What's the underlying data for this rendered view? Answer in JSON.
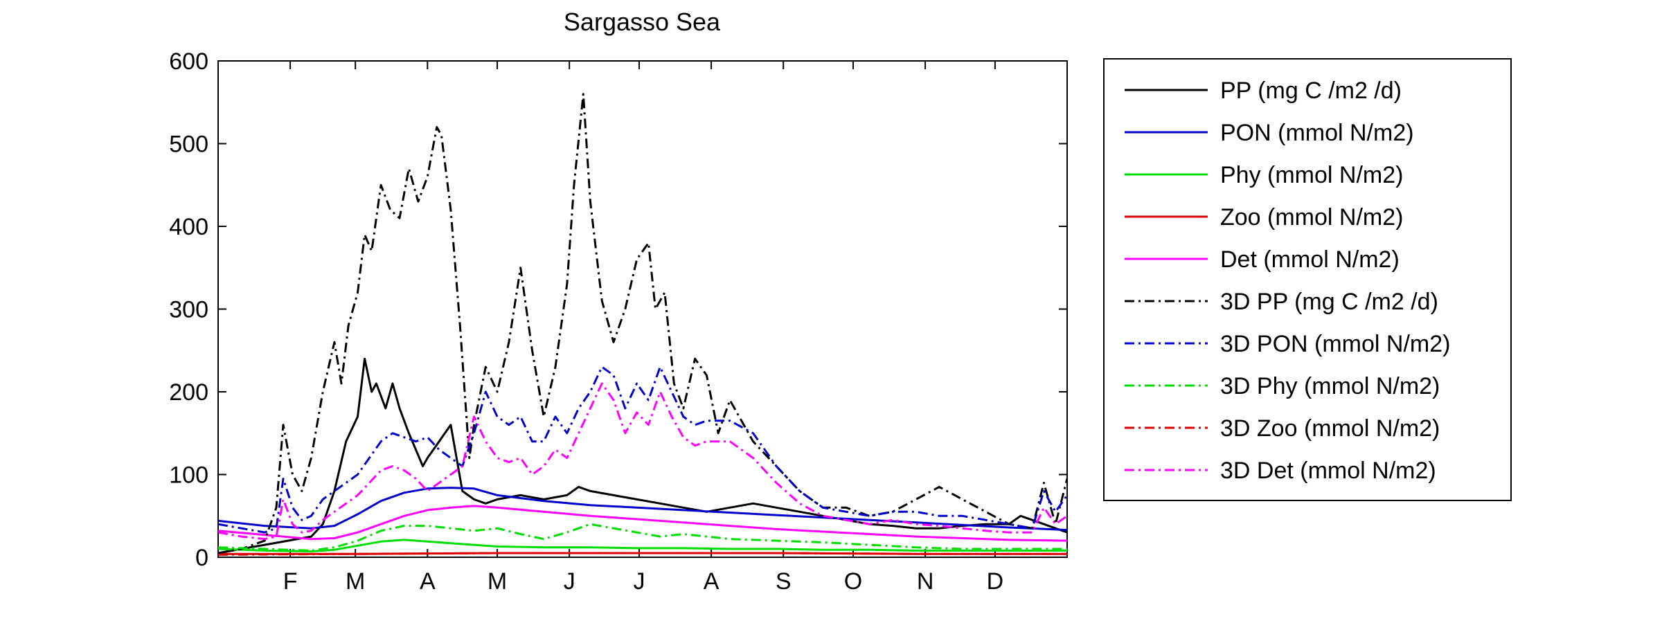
{
  "chart_data": {
    "type": "line",
    "title": "Sargasso Sea",
    "xlabel": "",
    "ylabel": "",
    "xlim": [
      0,
      365
    ],
    "ylim": [
      0,
      600
    ],
    "yticks": [
      0,
      100,
      200,
      300,
      400,
      500,
      600
    ],
    "xticks": [
      {
        "label": "F",
        "day": 31
      },
      {
        "label": "M",
        "day": 59
      },
      {
        "label": "A",
        "day": 90
      },
      {
        "label": "M",
        "day": 120
      },
      {
        "label": "J",
        "day": 151
      },
      {
        "label": "J",
        "day": 181
      },
      {
        "label": "A",
        "day": 212
      },
      {
        "label": "S",
        "day": 243
      },
      {
        "label": "O",
        "day": 273
      },
      {
        "label": "N",
        "day": 304
      },
      {
        "label": "D",
        "day": 334
      }
    ],
    "grid": false,
    "legend_position": "outside-right",
    "series": [
      {
        "name": "PP (mg C /m2 /d)",
        "color": "#000000",
        "dash": "solid",
        "x": [
          0,
          10,
          20,
          30,
          40,
          45,
          50,
          55,
          60,
          63,
          66,
          68,
          72,
          75,
          78,
          82,
          88,
          90,
          95,
          100,
          105,
          110,
          115,
          120,
          130,
          140,
          150,
          155,
          160,
          170,
          180,
          190,
          200,
          210,
          220,
          230,
          240,
          250,
          260,
          270,
          280,
          290,
          300,
          310,
          320,
          330,
          340,
          345,
          350,
          355,
          360,
          365
        ],
        "y": [
          5,
          10,
          15,
          20,
          25,
          40,
          80,
          140,
          170,
          240,
          200,
          210,
          180,
          210,
          180,
          150,
          110,
          120,
          140,
          160,
          80,
          70,
          65,
          70,
          75,
          70,
          75,
          85,
          80,
          75,
          70,
          65,
          60,
          55,
          60,
          65,
          60,
          55,
          50,
          45,
          40,
          38,
          35,
          35,
          38,
          40,
          40,
          50,
          45,
          40,
          35,
          30
        ]
      },
      {
        "name": "PON (mmol N/m2)",
        "color": "#0000cc",
        "dash": "solid",
        "x": [
          0,
          20,
          40,
          50,
          60,
          70,
          80,
          90,
          100,
          110,
          120,
          140,
          160,
          180,
          200,
          220,
          240,
          260,
          280,
          300,
          320,
          340,
          365
        ],
        "y": [
          44,
          38,
          35,
          38,
          52,
          68,
          78,
          83,
          84,
          83,
          75,
          68,
          63,
          60,
          57,
          54,
          51,
          48,
          45,
          42,
          39,
          36,
          33
        ]
      },
      {
        "name": "Phy (mmol N/m2)",
        "color": "#00dd00",
        "dash": "solid",
        "x": [
          0,
          20,
          40,
          50,
          60,
          70,
          80,
          90,
          100,
          110,
          120,
          140,
          160,
          180,
          200,
          220,
          240,
          260,
          280,
          300,
          320,
          340,
          365
        ],
        "y": [
          10,
          8,
          7,
          9,
          14,
          19,
          21,
          19,
          17,
          15,
          13,
          12,
          12,
          11,
          11,
          10,
          10,
          9,
          9,
          8,
          8,
          8,
          8
        ]
      },
      {
        "name": "Zoo (mmol N/m2)",
        "color": "#dd0000",
        "dash": "solid",
        "x": [
          0,
          60,
          120,
          180,
          240,
          300,
          365
        ],
        "y": [
          4,
          4,
          5,
          5,
          5,
          4,
          4
        ]
      },
      {
        "name": "Det (mmol N/m2)",
        "color": "#ff00ff",
        "dash": "solid",
        "x": [
          0,
          20,
          40,
          50,
          60,
          70,
          80,
          90,
          100,
          110,
          120,
          140,
          160,
          180,
          200,
          220,
          240,
          260,
          280,
          300,
          320,
          340,
          365
        ],
        "y": [
          32,
          27,
          22,
          23,
          30,
          40,
          50,
          57,
          60,
          62,
          60,
          55,
          50,
          46,
          42,
          38,
          34,
          31,
          28,
          25,
          23,
          21,
          20
        ]
      },
      {
        "name": "3D PP (mg C /m2 /d)",
        "color": "#000000",
        "dash": "dashdot",
        "x": [
          0,
          10,
          20,
          25,
          28,
          32,
          36,
          40,
          45,
          50,
          53,
          56,
          60,
          63,
          66,
          70,
          74,
          78,
          82,
          86,
          90,
          94,
          96,
          100,
          104,
          108,
          110,
          115,
          120,
          125,
          130,
          135,
          140,
          145,
          150,
          153,
          157,
          160,
          165,
          170,
          175,
          180,
          185,
          188,
          192,
          196,
          200,
          205,
          210,
          215,
          220,
          230,
          240,
          250,
          260,
          270,
          280,
          290,
          300,
          310,
          320,
          330,
          340,
          350,
          355,
          360,
          365
        ],
        "y": [
          5,
          10,
          20,
          60,
          160,
          100,
          80,
          120,
          200,
          260,
          210,
          280,
          320,
          390,
          370,
          450,
          420,
          410,
          470,
          430,
          460,
          520,
          510,
          420,
          280,
          120,
          160,
          230,
          200,
          260,
          350,
          250,
          170,
          230,
          330,
          450,
          560,
          430,
          310,
          260,
          300,
          360,
          380,
          300,
          320,
          210,
          180,
          240,
          220,
          150,
          190,
          140,
          110,
          80,
          60,
          60,
          50,
          55,
          70,
          85,
          70,
          55,
          40,
          35,
          90,
          40,
          95
        ]
      },
      {
        "name": "3D PON (mmol N/m2)",
        "color": "#0000cc",
        "dash": "dashdot",
        "x": [
          0,
          10,
          20,
          25,
          28,
          32,
          36,
          40,
          45,
          50,
          55,
          60,
          65,
          70,
          75,
          80,
          85,
          90,
          95,
          100,
          105,
          110,
          115,
          120,
          125,
          130,
          135,
          140,
          145,
          150,
          155,
          160,
          165,
          170,
          175,
          180,
          185,
          190,
          195,
          200,
          205,
          210,
          215,
          220,
          230,
          240,
          250,
          260,
          270,
          280,
          290,
          300,
          310,
          320,
          330,
          340,
          350,
          355,
          360,
          365
        ],
        "y": [
          40,
          35,
          30,
          35,
          95,
          60,
          45,
          50,
          70,
          80,
          90,
          100,
          120,
          140,
          150,
          145,
          140,
          145,
          130,
          120,
          110,
          150,
          200,
          170,
          160,
          170,
          140,
          140,
          170,
          150,
          180,
          200,
          230,
          220,
          180,
          210,
          190,
          230,
          200,
          170,
          160,
          165,
          165,
          165,
          150,
          110,
          80,
          60,
          55,
          50,
          55,
          55,
          50,
          50,
          45,
          40,
          35,
          80,
          55,
          75
        ]
      },
      {
        "name": "3D Phy (mmol N/m2)",
        "color": "#00dd00",
        "dash": "dashdot",
        "x": [
          0,
          20,
          40,
          50,
          60,
          70,
          80,
          90,
          100,
          110,
          120,
          130,
          140,
          150,
          160,
          170,
          180,
          190,
          200,
          210,
          220,
          240,
          260,
          280,
          300,
          320,
          340,
          365
        ],
        "y": [
          12,
          10,
          8,
          12,
          20,
          32,
          38,
          38,
          35,
          32,
          35,
          28,
          22,
          30,
          40,
          35,
          30,
          25,
          28,
          25,
          22,
          20,
          18,
          15,
          12,
          10,
          10,
          10
        ]
      },
      {
        "name": "3D Zoo (mmol N/m2)",
        "color": "#dd0000",
        "dash": "dashdot",
        "x": [
          0,
          60,
          120,
          180,
          240,
          300,
          365
        ],
        "y": [
          3,
          4,
          5,
          5,
          5,
          4,
          4
        ]
      },
      {
        "name": "3D Det (mmol N/m2)",
        "color": "#ff00ff",
        "dash": "dashdot",
        "x": [
          0,
          10,
          20,
          25,
          28,
          32,
          36,
          40,
          45,
          50,
          55,
          60,
          65,
          70,
          75,
          80,
          85,
          90,
          95,
          100,
          105,
          110,
          115,
          120,
          125,
          130,
          135,
          140,
          145,
          150,
          155,
          160,
          165,
          170,
          175,
          180,
          185,
          190,
          195,
          200,
          205,
          210,
          215,
          220,
          230,
          240,
          250,
          260,
          270,
          280,
          290,
          300,
          310,
          320,
          330,
          340,
          350,
          355,
          360,
          365
        ],
        "y": [
          30,
          25,
          22,
          25,
          70,
          40,
          30,
          32,
          45,
          55,
          65,
          75,
          90,
          105,
          110,
          105,
          95,
          80,
          90,
          100,
          110,
          170,
          140,
          120,
          115,
          120,
          100,
          110,
          130,
          120,
          150,
          180,
          210,
          190,
          150,
          175,
          160,
          200,
          170,
          145,
          135,
          140,
          140,
          140,
          120,
          90,
          65,
          50,
          45,
          40,
          45,
          40,
          38,
          35,
          32,
          30,
          30,
          60,
          40,
          50
        ]
      }
    ]
  }
}
